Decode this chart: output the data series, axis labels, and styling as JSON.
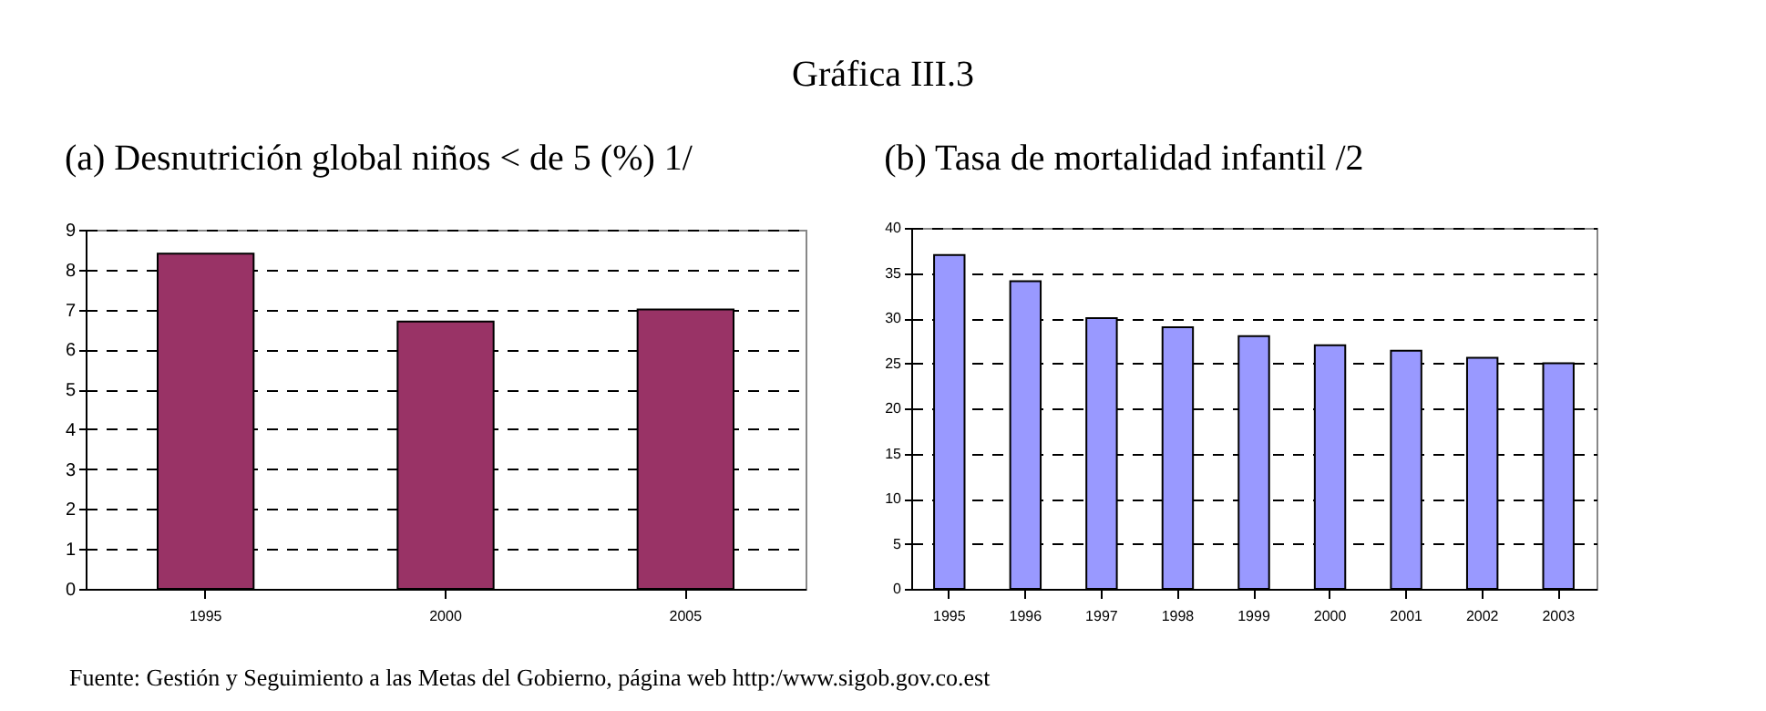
{
  "chart_data": [
    {
      "type": "bar",
      "title": "(a) Desnutrición global niños < de 5 (%) 1/",
      "categories": [
        "1995",
        "2000",
        "2005"
      ],
      "values": [
        8.4,
        6.7,
        7.0
      ],
      "color": "#993366",
      "ylim": [
        0,
        9
      ],
      "yticks": [
        0,
        1,
        2,
        3,
        4,
        5,
        6,
        7,
        8,
        9
      ],
      "grid": "y",
      "annotations": [
        "Gráfica III.3",
        "Fuente: Gestión y Seguimiento a las Metas del Gobierno, página web http:/www.sigob.gov.co.est"
      ]
    },
    {
      "type": "bar",
      "title": "(b) Tasa de mortalidad infantil /2",
      "categories": [
        "1995",
        "1996",
        "1997",
        "1998",
        "1999",
        "2000",
        "2001",
        "2002",
        "2003"
      ],
      "values": [
        37,
        34.1,
        30,
        29,
        28,
        27,
        26.4,
        25.6,
        25
      ],
      "color": "#9999ff",
      "ylim": [
        0,
        40
      ],
      "yticks": [
        0,
        5,
        10,
        15,
        20,
        25,
        30,
        35,
        40
      ],
      "grid": "y"
    }
  ]
}
